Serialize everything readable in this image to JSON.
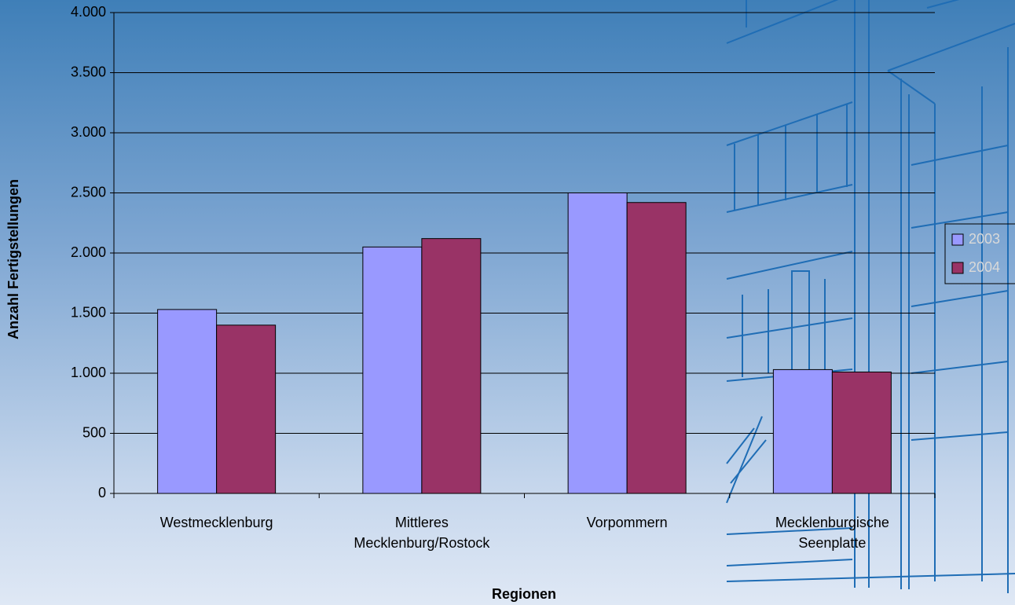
{
  "chart_data": {
    "type": "bar",
    "categories": [
      "Westmecklenburg",
      "Mittleres Mecklenburg/Rostock",
      "Vorpommern",
      "Mecklenburgische Seenplatte"
    ],
    "series": [
      {
        "name": "2003",
        "color": "#9999ff",
        "values": [
          1530,
          2050,
          2500,
          1030
        ]
      },
      {
        "name": "2004",
        "color": "#993366",
        "values": [
          1400,
          2120,
          2420,
          1010
        ]
      }
    ],
    "ylim": [
      0,
      4000
    ],
    "yticks": [
      0,
      500,
      {
        "value": 1000,
        "label": "1.000"
      },
      {
        "value": 1500,
        "label": "1.500"
      },
      {
        "value": 2000,
        "label": "2.000"
      },
      {
        "value": 2500,
        "label": "2.500"
      },
      {
        "value": 3000,
        "label": "3.000"
      },
      {
        "value": 3500,
        "label": "3.500"
      },
      {
        "value": 4000,
        "label": "4.000"
      }
    ],
    "x_label": "Regionen",
    "y_label": "Anzahl Fertigstellungen",
    "grid": true,
    "legend": "right"
  }
}
